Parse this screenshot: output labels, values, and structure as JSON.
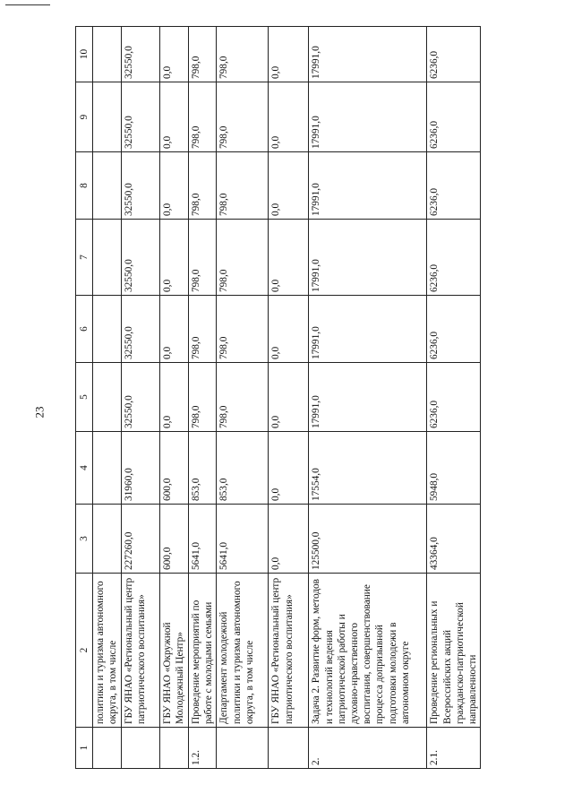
{
  "page_number": "23",
  "table": {
    "headers": [
      "1",
      "2",
      "3",
      "4",
      "5",
      "6",
      "7",
      "8",
      "9",
      "10"
    ],
    "rows": [
      {
        "no": "",
        "name": "политики и туризма автономного округа, в том числе",
        "values": [
          "",
          "",
          "",
          "",
          "",
          "",
          "",
          ""
        ]
      },
      {
        "no": "",
        "name": "ГБУ ЯНАО «Региональный центр патриотического воспитания»",
        "values": [
          "227260,0",
          "31960,0",
          "32550,0",
          "32550,0",
          "32550,0",
          "32550,0",
          "32550,0",
          "32550,0"
        ]
      },
      {
        "no": "",
        "name": "ГБУ ЯНАО «Окружной Молодежный Центр»",
        "values": [
          "600,0",
          "600,0",
          "0,0",
          "0,0",
          "0,0",
          "0,0",
          "0,0",
          "0,0"
        ]
      },
      {
        "no": "1.2.",
        "name": "Проведение мероприятий по работе с молодыми семьями",
        "values": [
          "5641,0",
          "853,0",
          "798,0",
          "798,0",
          "798,0",
          "798,0",
          "798,0",
          "798,0"
        ]
      },
      {
        "no": "",
        "name": "Департамент молодежной политики и туризма автономного округа, в том числе",
        "values": [
          "5641,0",
          "853,0",
          "798,0",
          "798,0",
          "798,0",
          "798,0",
          "798,0",
          "798,0"
        ]
      },
      {
        "no": "",
        "name": "ГБУ ЯНАО «Региональный центр патриотического воспитания»",
        "values": [
          "0,0",
          "0,0",
          "0,0",
          "0,0",
          "0,0",
          "0,0",
          "0,0",
          "0,0"
        ]
      },
      {
        "no": "2.",
        "name": "Задача 2. Развитие форм, методов и технологий ведения патриотической работы и духовно-нравственного воспитания, совершенствование процесса допризывной подготовки молодежи в автономном округе",
        "values": [
          "125500,0",
          "17554,0",
          "17991,0",
          "17991,0",
          "17991,0",
          "17991,0",
          "17991,0",
          "17991,0"
        ]
      },
      {
        "no": "2.1.",
        "name": "Проведение региональных и Всероссийских акций гражданско-патриотической направленности",
        "values": [
          "43364,0",
          "5948,0",
          "6236,0",
          "6236,0",
          "6236,0",
          "6236,0",
          "6236,0",
          "6236,0"
        ]
      }
    ]
  }
}
